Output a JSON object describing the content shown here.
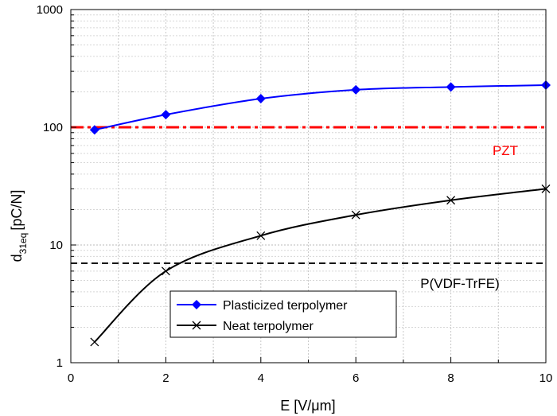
{
  "chart_data": {
    "type": "line",
    "title": "",
    "xlabel": "E [V/μm]",
    "ylabel_main": "d",
    "ylabel_sub": "31eq",
    "ylabel_unit": "[pC/N]",
    "xlim": [
      0,
      10
    ],
    "ylim": [
      1,
      1000
    ],
    "yscale": "log",
    "grid": true,
    "x_ticks": [
      0,
      2,
      4,
      6,
      8,
      10
    ],
    "y_ticks": [
      1,
      10,
      100,
      1000
    ],
    "series": [
      {
        "name": "Plasticized terpolymer",
        "color": "#0000ff",
        "marker": "diamond",
        "x": [
          0.5,
          2,
          4,
          6,
          8,
          10
        ],
        "y": [
          95,
          128,
          175,
          208,
          220,
          228
        ]
      },
      {
        "name": "Neat terpolymer",
        "color": "#000000",
        "marker": "x",
        "x": [
          0.5,
          2,
          4,
          6,
          8,
          10
        ],
        "y": [
          1.5,
          6,
          12,
          18,
          24,
          30
        ]
      }
    ],
    "reference_lines": [
      {
        "label": "PZT",
        "value": 100,
        "color": "#ff0000",
        "style": "dash-dot"
      },
      {
        "label": "P(VDF-TrFE)",
        "value": 7,
        "color": "#000000",
        "style": "dashed"
      }
    ],
    "legend_position": "bottom-left"
  }
}
